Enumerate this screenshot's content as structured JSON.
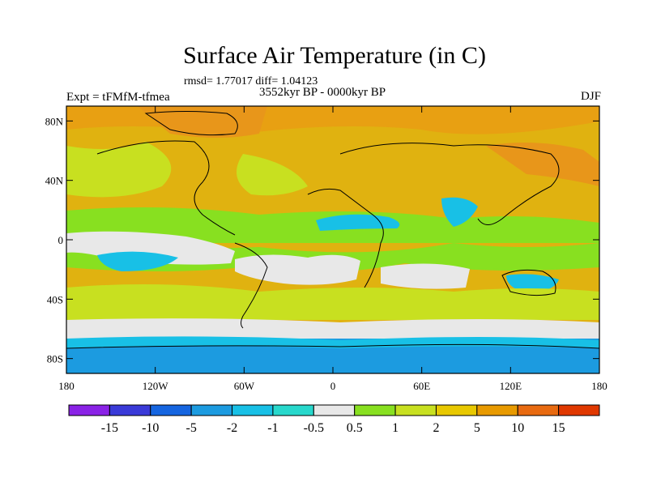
{
  "title": "Surface Air Temperature (in C)",
  "stats_line": "rmsd= 1.77017 diff= 1.04123",
  "period": "3552kyr BP - 0000kyr BP",
  "experiment": "Expt = tFMfM-tfmea",
  "season": "DJF",
  "x_ticks": [
    "180",
    "120W",
    "60W",
    "0",
    "60E",
    "120E",
    "180"
  ],
  "y_ticks": [
    "80N",
    "40N",
    "0",
    "40S",
    "80S"
  ],
  "colorbar": {
    "levels": [
      "-15",
      "-10",
      "-5",
      "-2",
      "-1",
      "-0.5",
      "0.5",
      "1",
      "2",
      "5",
      "10",
      "15"
    ],
    "colors": [
      "#8a22e6",
      "#3a3ad8",
      "#1565e0",
      "#1c9be0",
      "#18c0e6",
      "#28d8cc",
      "#e8e8e8",
      "#88e020",
      "#c8e020",
      "#e8c800",
      "#e89a00",
      "#e86a10",
      "#e03800"
    ]
  },
  "colors": {
    "background_field": "#e0b210",
    "coast": "#000000"
  }
}
